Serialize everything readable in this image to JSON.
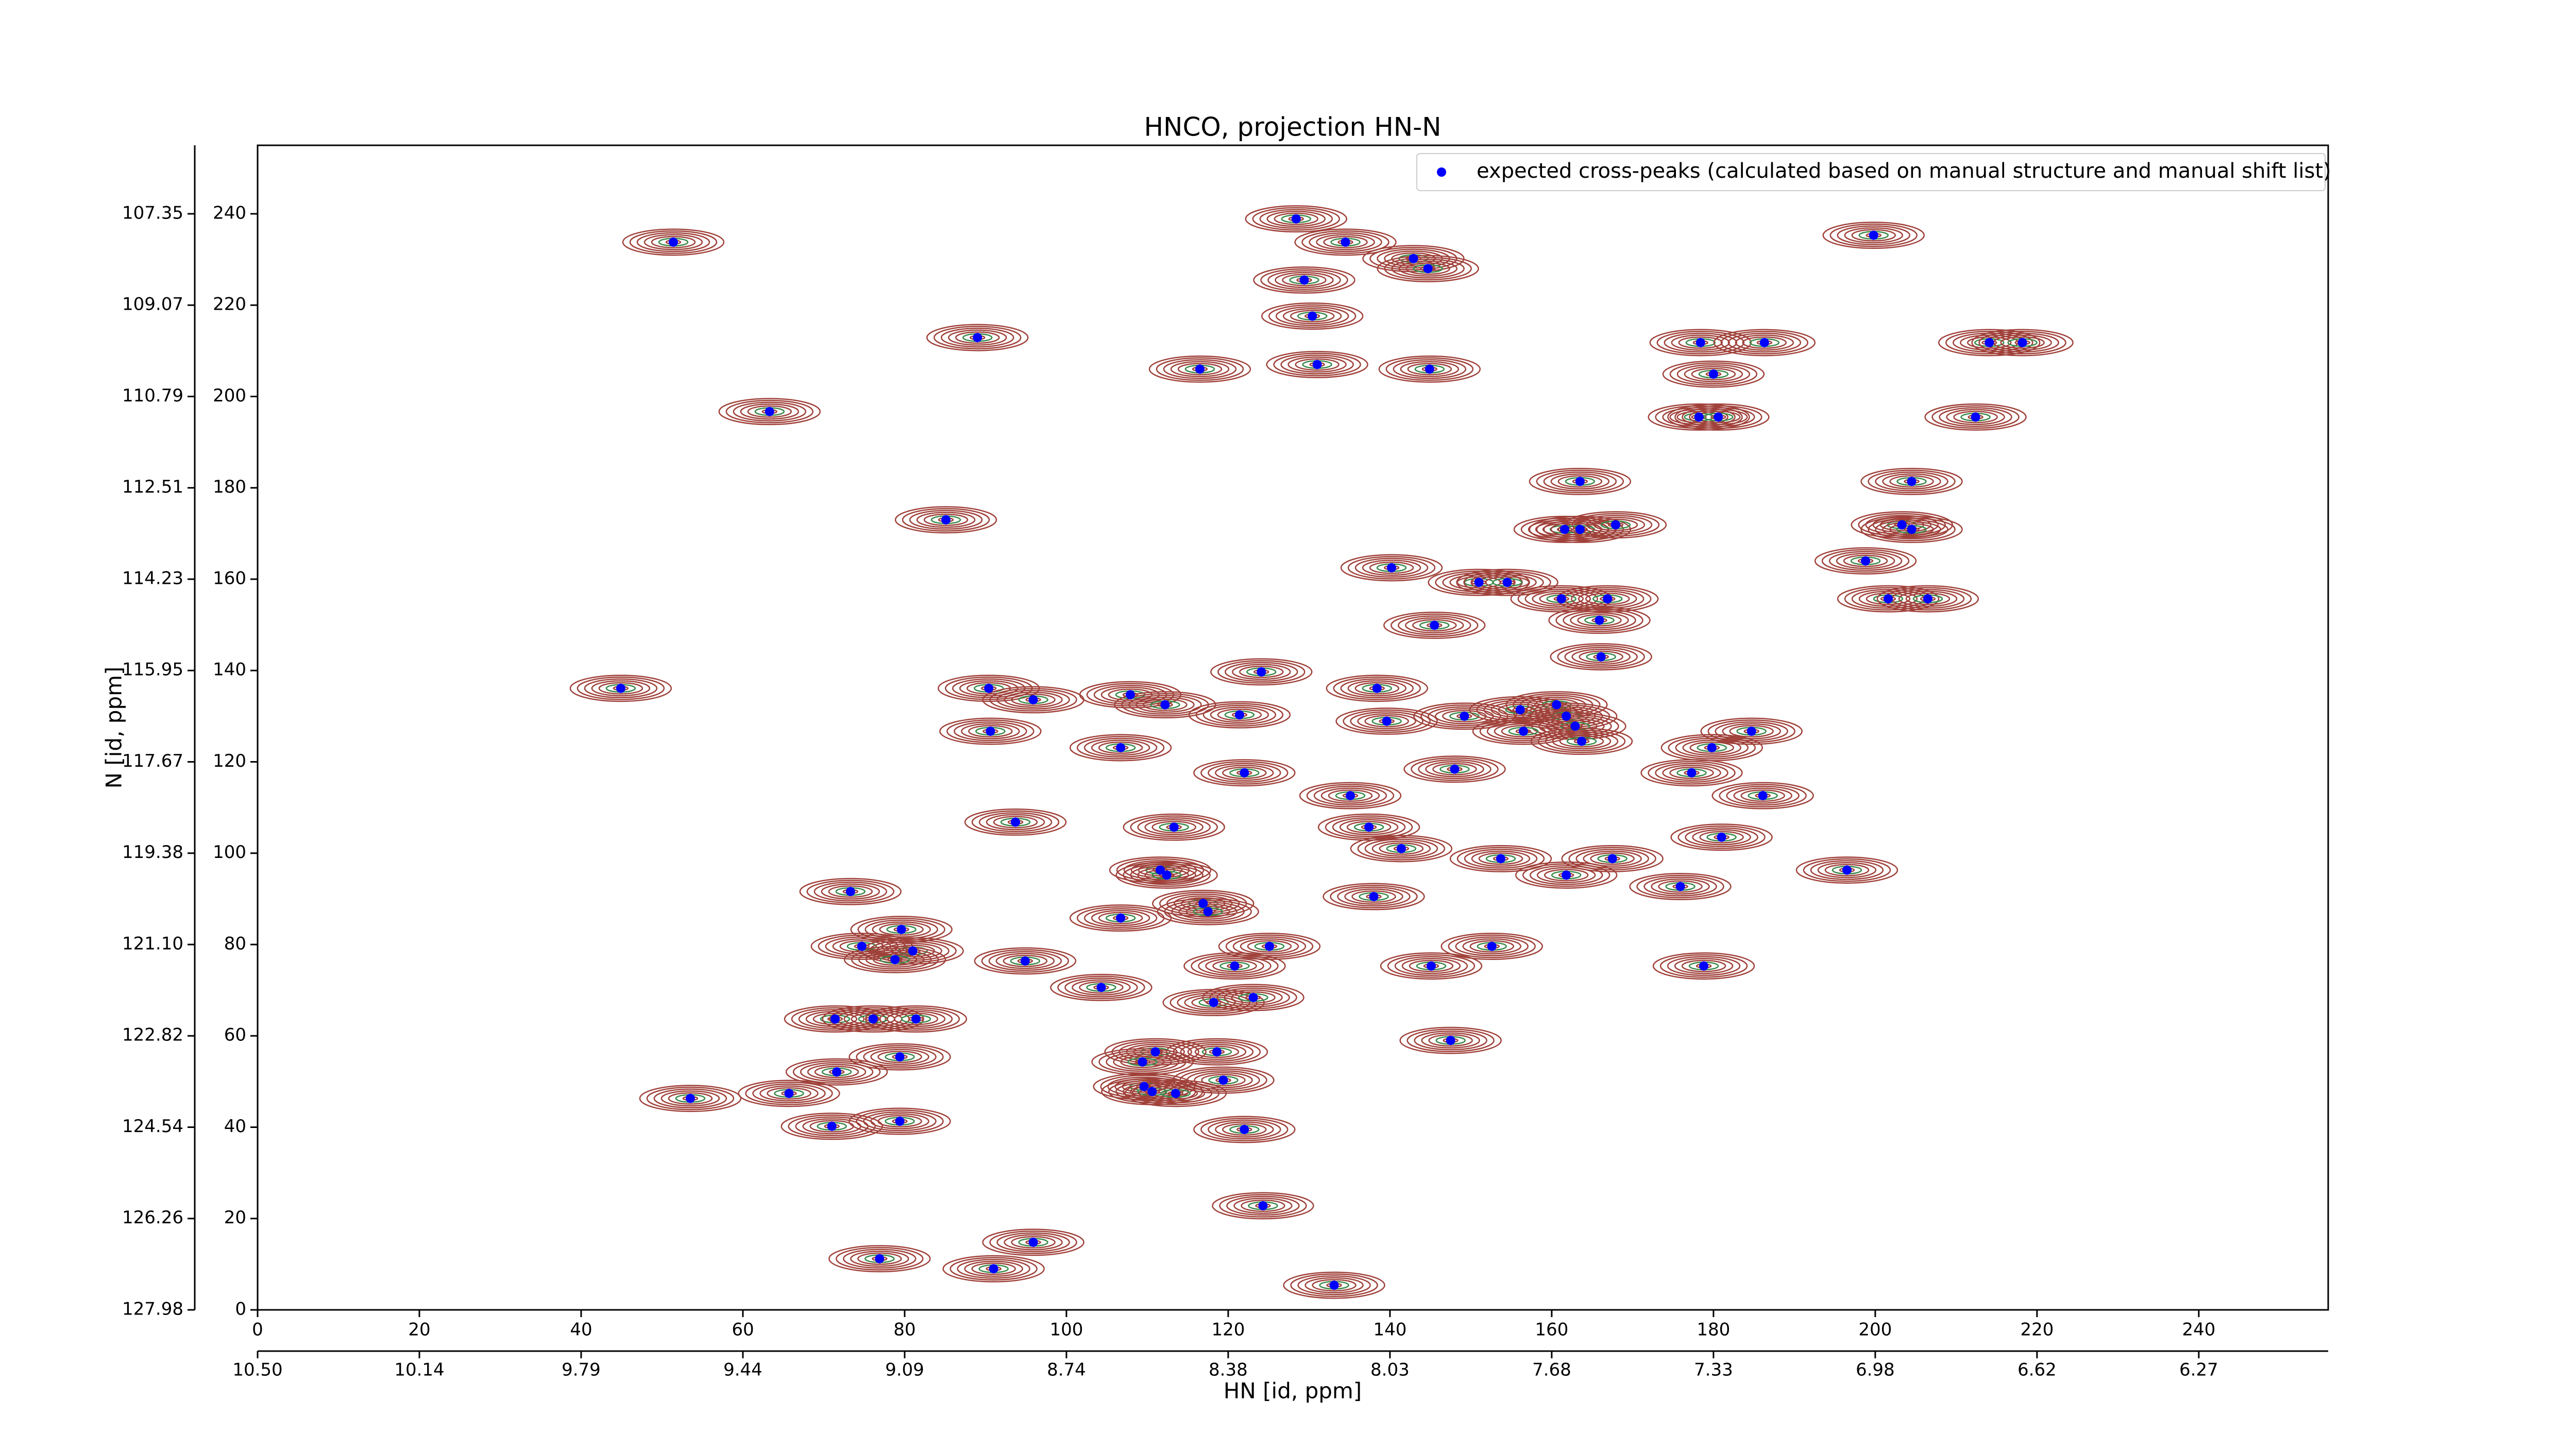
{
  "chart_data": {
    "type": "scatter",
    "title": "HNCO, projection HN-N",
    "xlabel": "HN [id, ppm]",
    "ylabel": "N [id, ppm]",
    "xlim": [
      0,
      256
    ],
    "ylim": [
      0,
      255
    ],
    "xticks": [
      0,
      20,
      40,
      60,
      80,
      100,
      120,
      140,
      160,
      180,
      200,
      220,
      240
    ],
    "yticks": [
      0,
      20,
      40,
      60,
      80,
      100,
      120,
      140,
      160,
      180,
      200,
      220,
      240
    ],
    "x2ticks": [
      {
        "value": 0,
        "label": "10.50"
      },
      {
        "value": 20,
        "label": "10.14"
      },
      {
        "value": 40,
        "label": "9.79"
      },
      {
        "value": 60,
        "label": "9.44"
      },
      {
        "value": 80,
        "label": "9.09"
      },
      {
        "value": 100,
        "label": "8.74"
      },
      {
        "value": 120,
        "label": "8.38"
      },
      {
        "value": 140,
        "label": "8.03"
      },
      {
        "value": 160,
        "label": "7.68"
      },
      {
        "value": 180,
        "label": "7.33"
      },
      {
        "value": 200,
        "label": "6.98"
      },
      {
        "value": 220,
        "label": "6.62"
      },
      {
        "value": 240,
        "label": "6.27"
      }
    ],
    "y2ticks": [
      {
        "value": 0,
        "label": "127.98"
      },
      {
        "value": 20,
        "label": "126.26"
      },
      {
        "value": 40,
        "label": "124.54"
      },
      {
        "value": 60,
        "label": "122.82"
      },
      {
        "value": 80,
        "label": "121.10"
      },
      {
        "value": 100,
        "label": "119.38"
      },
      {
        "value": 120,
        "label": "117.67"
      },
      {
        "value": 140,
        "label": "115.95"
      },
      {
        "value": 160,
        "label": "114.23"
      },
      {
        "value": 180,
        "label": "112.51"
      },
      {
        "value": 200,
        "label": "110.79"
      },
      {
        "value": 220,
        "label": "109.07"
      },
      {
        "value": 240,
        "label": "107.35"
      }
    ],
    "legend": "upper right",
    "contour_color": "#a0413a",
    "series": [
      {
        "name": "expected cross-peaks (calculated based on manual structure and manual shift list)",
        "color": "#0000ff",
        "x": [
          51.4,
          63.3,
          89,
          85.1,
          44.9,
          128.4,
          134.5,
          142.9,
          144.7,
          129.4,
          130.4,
          116.5,
          131,
          144.9,
          199.8,
          178.4,
          186.3,
          214.1,
          218.2,
          180,
          178.2,
          180.6,
          212.4,
          163.5,
          204.5,
          161.6,
          163.5,
          167.9,
          203.3,
          204.5,
          198.8,
          140.2,
          151,
          154.5,
          161.2,
          166.9,
          201.6,
          206.5,
          145.5,
          165.9,
          166.1,
          124.1,
          90.4,
          95.9,
          107.9,
          112.2,
          138.4,
          121.4,
          139.6,
          149.2,
          156.1,
          160.6,
          161.8,
          162.9,
          156.5,
          163.7,
          90.6,
          106.7,
          184.7,
          179.8,
          122,
          148,
          177.3,
          186.1,
          135.1,
          93.7,
          113.3,
          137.4,
          141.4,
          153.7,
          167.5,
          161.8,
          196.5,
          181,
          111.6,
          112.4,
          175.9,
          73.3,
          138,
          116.9,
          117.5,
          106.7,
          79.6,
          74.7,
          81,
          78.8,
          94.9,
          125.1,
          152.6,
          120.8,
          145.1,
          178.8,
          104.3,
          118.2,
          123.1,
          71.4,
          76.1,
          81.4,
          147.5,
          118.6,
          111,
          79.4,
          109.4,
          71.6,
          119.4,
          109.6,
          110.6,
          113.5,
          53.5,
          65.7,
          71,
          79.4,
          122,
          124.3,
          76.9,
          95.9,
          91,
          133.1
        ],
        "y": [
          233.8,
          196.7,
          212.9,
          173,
          136.1,
          238.9,
          233.8,
          230.2,
          228,
          225.5,
          217.6,
          206,
          207,
          206,
          235.3,
          211.8,
          211.8,
          211.8,
          211.8,
          204.9,
          195.5,
          195.5,
          195.5,
          181.4,
          181.4,
          170.9,
          170.9,
          171.9,
          171.9,
          170.9,
          164,
          162.5,
          159.3,
          159.3,
          155.7,
          155.7,
          155.7,
          155.7,
          149.9,
          151,
          143,
          139.7,
          136.1,
          133.6,
          134.7,
          132.5,
          136.1,
          130.3,
          128.9,
          130,
          131.4,
          132.5,
          130,
          127.8,
          126.7,
          124.5,
          126.7,
          123.1,
          126.7,
          123.1,
          117.6,
          118.4,
          117.6,
          112.6,
          112.6,
          106.8,
          105.7,
          105.7,
          101,
          98.8,
          98.8,
          95.2,
          96.3,
          103.5,
          96.3,
          95.2,
          92.7,
          91.6,
          90.5,
          89,
          87.2,
          85.8,
          83.3,
          79.6,
          78.6,
          76.7,
          76.4,
          79.6,
          79.6,
          75.3,
          75.3,
          75.3,
          70.6,
          67.3,
          68.4,
          63.7,
          63.7,
          63.7,
          59,
          56.5,
          56.5,
          55.4,
          54.3,
          52.1,
          50.3,
          48.9,
          47.8,
          47.4,
          46.3,
          47.4,
          40.2,
          41.3,
          39.5,
          22.8,
          11.2,
          14.8,
          9,
          5.4
        ]
      }
    ]
  }
}
